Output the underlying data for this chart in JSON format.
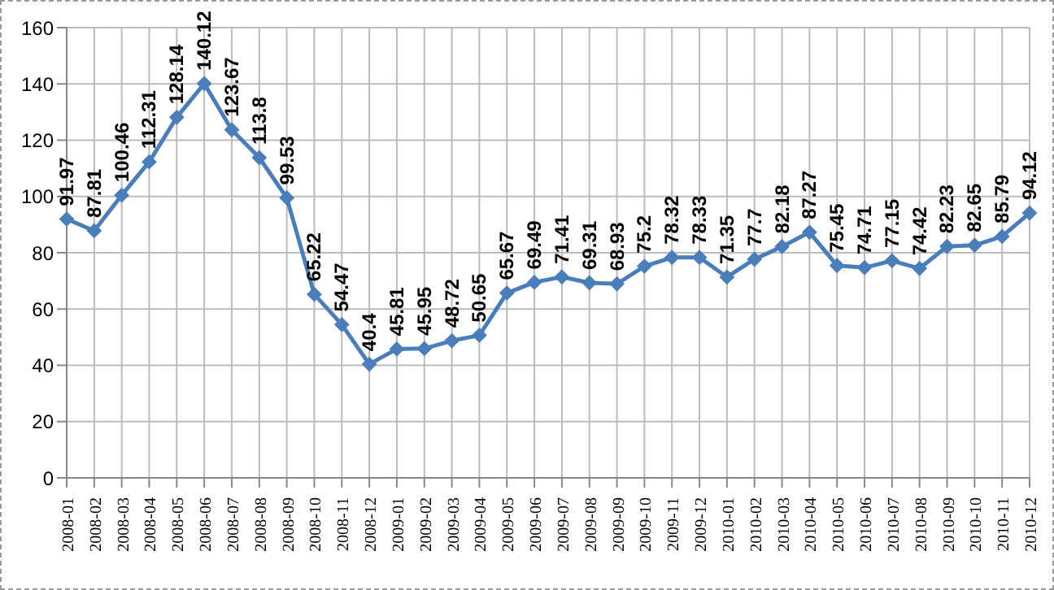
{
  "chart_data": {
    "type": "line",
    "categories": [
      "2008-01",
      "2008-02",
      "2008-03",
      "2008-04",
      "2008-05",
      "2008-06",
      "2008-07",
      "2008-08",
      "2008-09",
      "2008-10",
      "2008-11",
      "2008-12",
      "2009-01",
      "2009-02",
      "2009-03",
      "2009-04",
      "2009-05",
      "2009-06",
      "2009-07",
      "2009-08",
      "2009-09",
      "2009-10",
      "2009-11",
      "2009-12",
      "2010-01",
      "2010-02",
      "2010-03",
      "2010-04",
      "2010-05",
      "2010-06",
      "2010-07",
      "2010-08",
      "2010-09",
      "2010-10",
      "2010-11",
      "2010-12"
    ],
    "series": [
      {
        "color": "#4a7ebb",
        "values": [
          91.97,
          87.81,
          100.46,
          112.31,
          128.14,
          140.12,
          123.67,
          113.8,
          99.53,
          65.22,
          54.47,
          40.4,
          45.81,
          45.95,
          48.72,
          50.65,
          65.67,
          69.49,
          71.41,
          69.31,
          68.93,
          75.2,
          78.32,
          78.33,
          71.35,
          77.7,
          82.18,
          87.27,
          75.45,
          74.71,
          77.15,
          74.42,
          82.23,
          82.65,
          85.79,
          94.12
        ]
      }
    ],
    "ylim": [
      0,
      160
    ],
    "yticks": [
      0,
      20,
      40,
      60,
      80,
      100,
      120,
      140,
      160
    ],
    "grid": true,
    "marker": "diamond",
    "line_style": "solid",
    "data_labels": true
  }
}
